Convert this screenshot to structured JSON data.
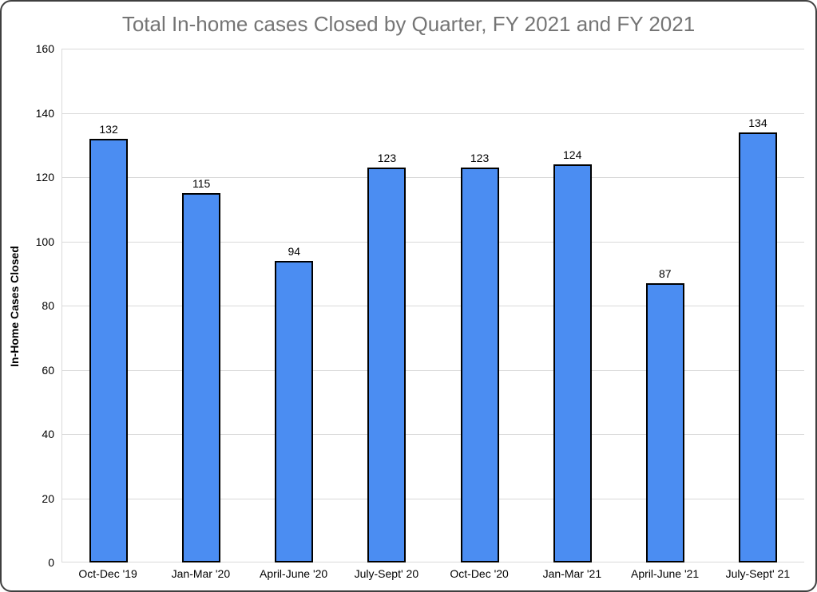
{
  "chart_data": {
    "type": "bar",
    "title": "Total In-home cases Closed by Quarter, FY 2021 and FY 2021",
    "categories": [
      "Oct-Dec '19",
      "Jan-Mar '20",
      "April-June '20",
      "July-Sept' 20",
      "Oct-Dec '20",
      "Jan-Mar '21",
      "April-June '21",
      "July-Sept' 21"
    ],
    "values": [
      132,
      115,
      94,
      123,
      123,
      124,
      87,
      134
    ],
    "xlabel": "",
    "ylabel": "In-Home Cases Closed",
    "ylim": [
      0,
      160
    ],
    "yticks": [
      0,
      20,
      40,
      60,
      80,
      100,
      120,
      140,
      160
    ],
    "grid": true,
    "legend": "none",
    "bar_value_labels_shown": true
  },
  "colors": {
    "bar_fill": "#4b8df2",
    "bar_border": "#000000",
    "title": "#757575",
    "gridline": "#d9d9d9",
    "axis_label": "#000000",
    "window_border": "#3f3f3f",
    "background": "#ffffff"
  }
}
